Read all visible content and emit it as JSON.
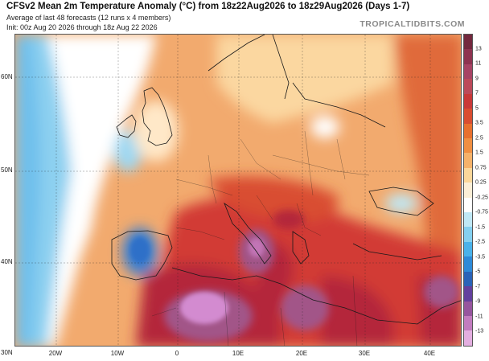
{
  "header": {
    "title": "CFSv2 Mean 2m Temperature Anomaly (°C) from 18z22Aug2026 to 18z29Aug2026 (Days 1-7)",
    "subtitle1": "Average of last 48 forecasts (12 runs x 4 members)",
    "subtitle2": "Init: 00z Aug 20 2026 through 18z Aug 22 2026",
    "brand": "TROPICALTIDBITS.COM"
  },
  "map": {
    "lat_labels": [
      "60N",
      "50N",
      "40N",
      "30N"
    ],
    "lon_labels": [
      "20W",
      "10W",
      "0",
      "10E",
      "20E",
      "30E",
      "40E"
    ],
    "colors": {
      "background_warm": "#f2aa6e",
      "cool_blue": "#6fc0ec",
      "deep_blue": "#3a7fd0",
      "deep_red": "#b4283b",
      "purple": "#a25588",
      "pink": "#d38bd0"
    }
  },
  "colorbar": {
    "levels": [
      "13",
      "11",
      "9",
      "7",
      "5",
      "3.5",
      "2.5",
      "1.5",
      "0.75",
      "0.25",
      "-0.25",
      "-0.75",
      "-1.5",
      "-2.5",
      "-3.5",
      "-5",
      "-7",
      "-9",
      "-11",
      "-13"
    ],
    "colors": [
      "#73283e",
      "#8e3350",
      "#a74364",
      "#bc4a5a",
      "#c93838",
      "#d94d31",
      "#e8702f",
      "#f08f42",
      "#f6b26a",
      "#fbd79a",
      "#fbeed6",
      "#ffffff",
      "#bfe8f6",
      "#84d0f0",
      "#4ab2ea",
      "#2e8ad8",
      "#2a63b8",
      "#63409e",
      "#96559e",
      "#c27cbf",
      "#e3aee0"
    ]
  }
}
